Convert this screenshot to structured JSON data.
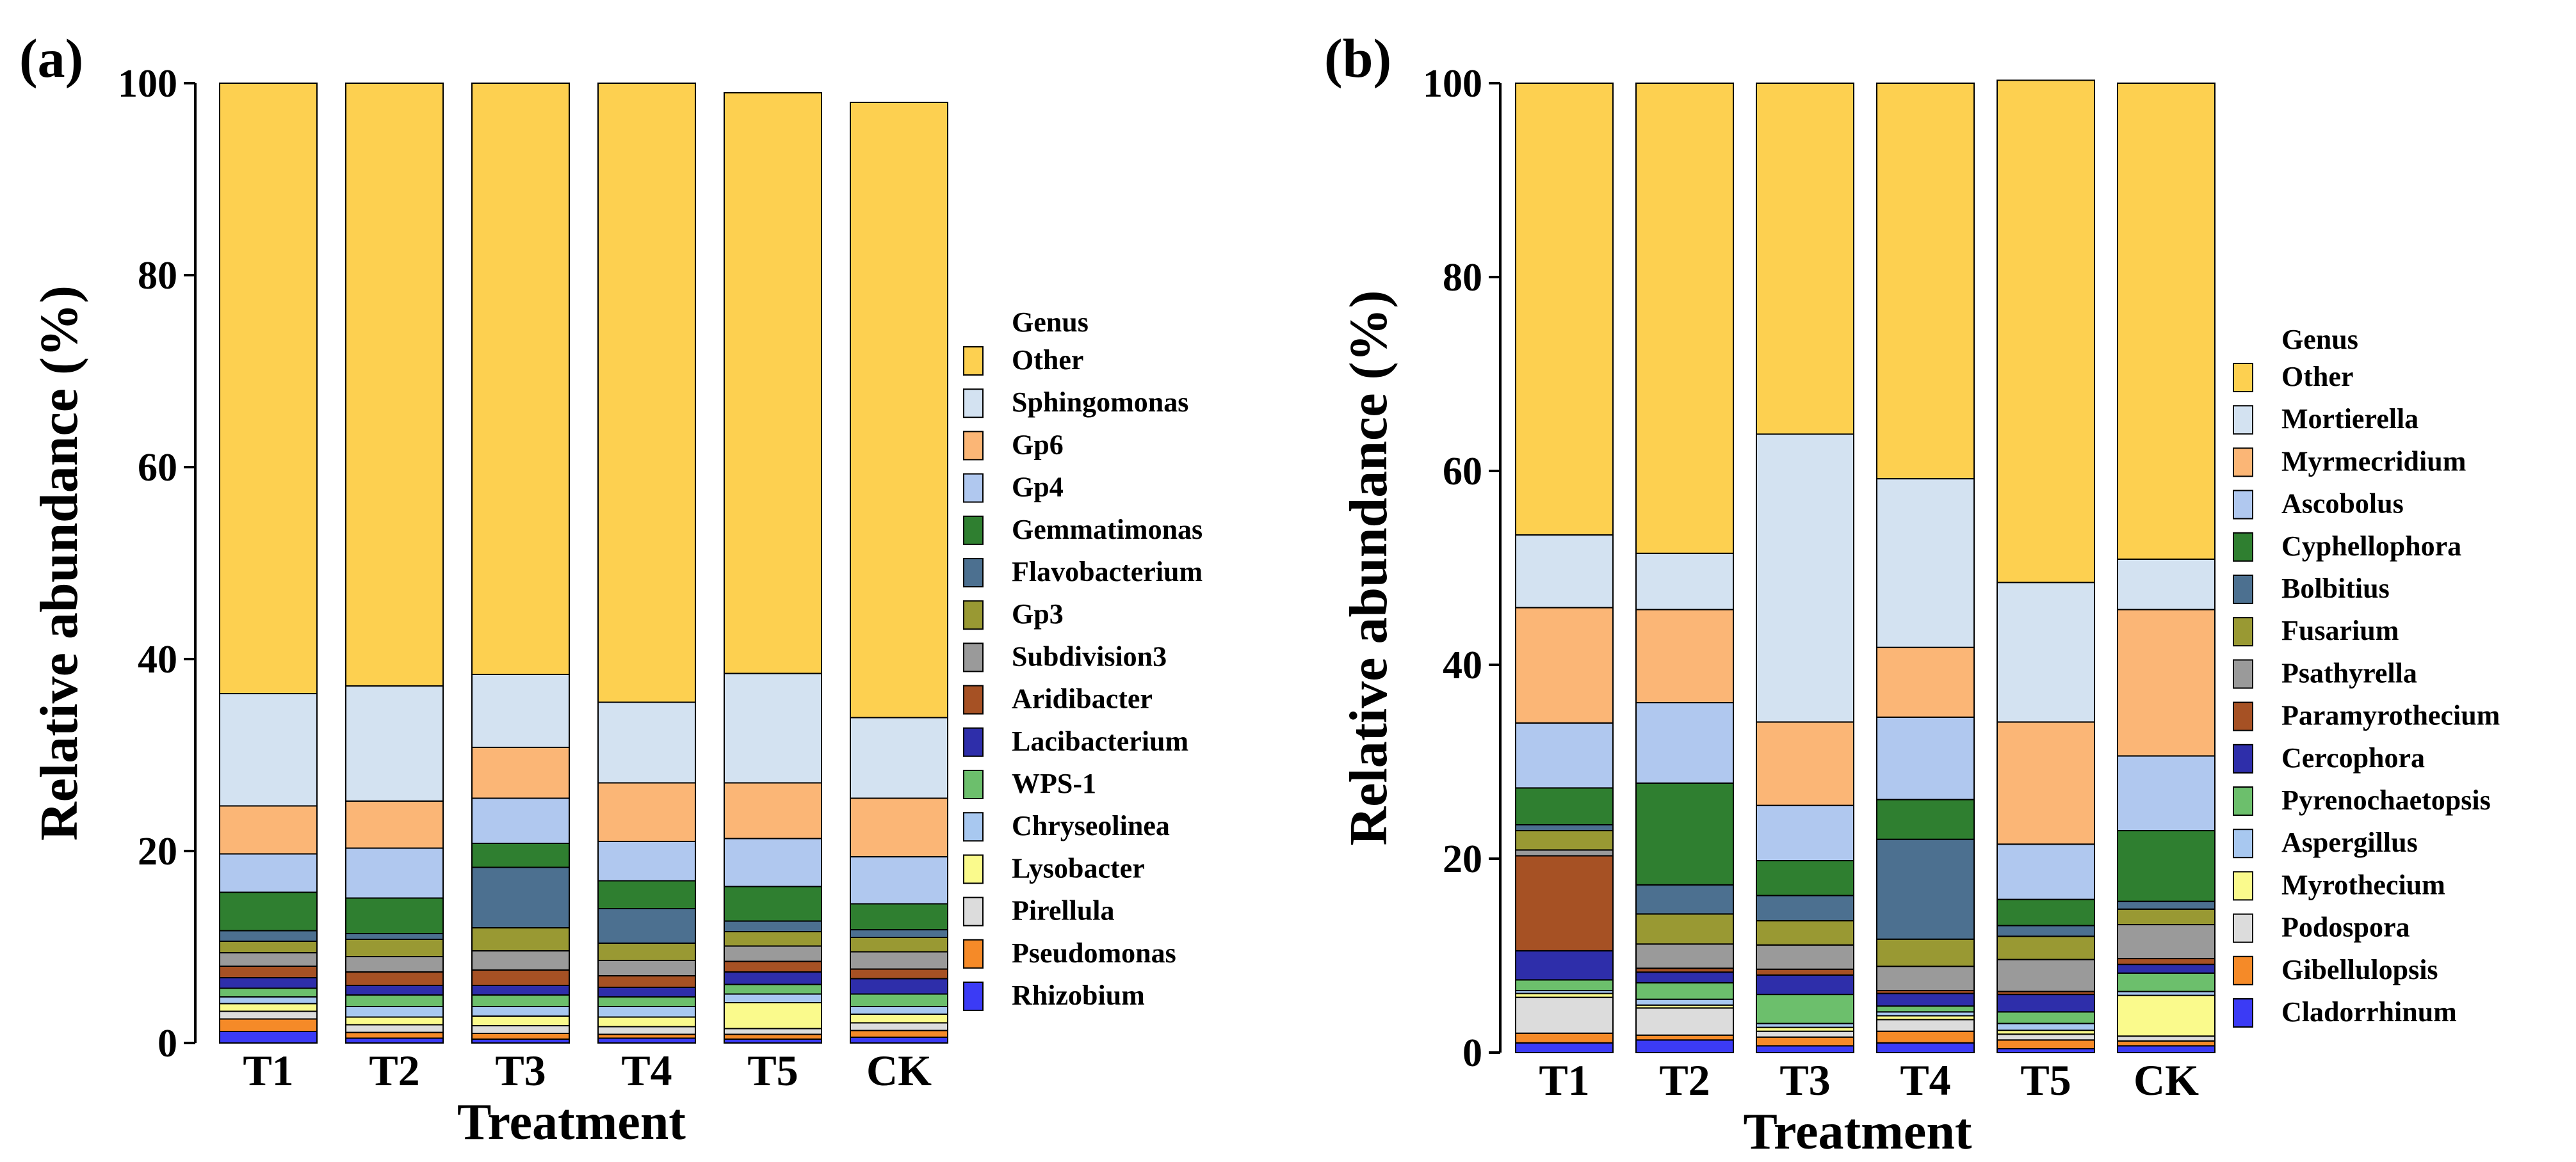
{
  "chart_data": [
    {
      "panel_label": "(a)",
      "type": "bar",
      "stacked": true,
      "xlabel": "Treatment",
      "ylabel": "Relative abundance (%)",
      "ylim": [
        0,
        100
      ],
      "yticks": [
        0,
        20,
        40,
        60,
        80,
        100
      ],
      "categories": [
        "T1",
        "T2",
        "T3",
        "T4",
        "T5",
        "CK"
      ],
      "legend": {
        "title": "Genus",
        "placement": "right"
      },
      "series": [
        {
          "name": "Rhizobium",
          "color": "#3b3bf5",
          "values": [
            1.2,
            0.5,
            0.4,
            0.5,
            0.4,
            0.6
          ]
        },
        {
          "name": "Pseudomonas",
          "color": "#f58a28",
          "values": [
            1.3,
            0.6,
            0.6,
            0.4,
            0.5,
            0.7
          ]
        },
        {
          "name": "Pirellula",
          "color": "#dcdcdc",
          "values": [
            0.8,
            0.8,
            0.8,
            0.8,
            0.6,
            0.8
          ]
        },
        {
          "name": "Lysobacter",
          "color": "#fafa8c",
          "values": [
            0.8,
            0.8,
            1.0,
            1.0,
            2.7,
            0.9
          ]
        },
        {
          "name": "Chryseolinea",
          "color": "#a8c8f0",
          "values": [
            0.7,
            1.1,
            1.0,
            1.1,
            0.9,
            0.8
          ]
        },
        {
          "name": "WPS-1",
          "color": "#6cbf6c",
          "values": [
            0.9,
            1.2,
            1.2,
            1.0,
            1.0,
            1.3
          ]
        },
        {
          "name": "Lacibacterium",
          "color": "#2e2eaa",
          "values": [
            1.1,
            1.0,
            1.0,
            1.0,
            1.3,
            1.6
          ]
        },
        {
          "name": "Aridibacter",
          "color": "#a65124",
          "values": [
            1.2,
            1.4,
            1.6,
            1.2,
            1.1,
            1.0
          ]
        },
        {
          "name": "Subdivision3",
          "color": "#9a9a9a",
          "values": [
            1.4,
            1.6,
            2.0,
            1.6,
            1.6,
            1.8
          ]
        },
        {
          "name": "Gp3",
          "color": "#999933",
          "values": [
            1.2,
            1.8,
            2.4,
            1.8,
            1.5,
            1.5
          ]
        },
        {
          "name": "Flavobacterium",
          "color": "#4c7090",
          "values": [
            1.1,
            0.6,
            6.3,
            3.6,
            1.1,
            0.8
          ]
        },
        {
          "name": "Gemmatimonas",
          "color": "#2f7f30",
          "values": [
            4.0,
            3.7,
            2.5,
            2.9,
            3.6,
            2.7
          ]
        },
        {
          "name": "Gp4",
          "color": "#b0c8ef",
          "values": [
            4.0,
            5.2,
            4.7,
            4.1,
            5.0,
            4.9
          ]
        },
        {
          "name": "Gp6",
          "color": "#fbb676",
          "values": [
            5.0,
            4.9,
            5.3,
            6.1,
            5.8,
            6.1
          ]
        },
        {
          "name": "Sphingomonas",
          "color": "#d3e2f1",
          "values": [
            11.7,
            12.0,
            7.6,
            8.4,
            11.4,
            8.4
          ]
        },
        {
          "name": "Other",
          "color": "#fdd050",
          "values": [
            63.6,
            62.8,
            61.6,
            64.5,
            60.5,
            64.1
          ]
        }
      ]
    },
    {
      "panel_label": "(b)",
      "type": "bar",
      "stacked": true,
      "xlabel": "Treatment",
      "ylabel": "Relative abundance (%)",
      "ylim": [
        0,
        100
      ],
      "yticks": [
        0,
        20,
        40,
        60,
        80,
        100
      ],
      "categories": [
        "T1",
        "T2",
        "T3",
        "T4",
        "T5",
        "CK"
      ],
      "legend": {
        "title": "Genus",
        "placement": "right"
      },
      "series": [
        {
          "name": "Cladorrhinum",
          "color": "#3b3bf5",
          "values": [
            1.0,
            1.3,
            0.7,
            1.0,
            0.4,
            0.7
          ]
        },
        {
          "name": "Gibellulopsis",
          "color": "#f58a28",
          "values": [
            1.0,
            0.5,
            0.9,
            1.2,
            0.9,
            0.5
          ]
        },
        {
          "name": "Podospora",
          "color": "#dcdcdc",
          "values": [
            3.7,
            2.8,
            0.6,
            1.2,
            0.6,
            0.5
          ]
        },
        {
          "name": "Myrothecium",
          "color": "#fafa8c",
          "values": [
            0.4,
            0.3,
            0.4,
            0.4,
            0.4,
            4.2
          ]
        },
        {
          "name": "Aspergillus",
          "color": "#a8c8f0",
          "values": [
            0.3,
            0.6,
            0.4,
            0.4,
            0.7,
            0.4
          ]
        },
        {
          "name": "Pyrenochaetopsis",
          "color": "#6cbf6c",
          "values": [
            1.1,
            1.7,
            3.0,
            0.6,
            1.2,
            1.9
          ]
        },
        {
          "name": "Cercophora",
          "color": "#2e2eaa",
          "values": [
            3.0,
            1.1,
            2.0,
            1.3,
            1.8,
            0.9
          ]
        },
        {
          "name": "Paramyrothecium",
          "color": "#a65124",
          "values": [
            9.8,
            0.4,
            0.6,
            0.3,
            0.3,
            0.6
          ]
        },
        {
          "name": "Psathyrella",
          "color": "#9a9a9a",
          "values": [
            0.6,
            2.5,
            2.5,
            2.5,
            3.3,
            3.5
          ]
        },
        {
          "name": "Fusarium",
          "color": "#999933",
          "values": [
            2.0,
            3.1,
            2.5,
            2.8,
            2.4,
            1.6
          ]
        },
        {
          "name": "Bolbitius",
          "color": "#4c7090",
          "values": [
            0.6,
            3.0,
            2.6,
            10.3,
            1.1,
            0.8
          ]
        },
        {
          "name": "Cyphellophora",
          "color": "#2f7f30",
          "values": [
            3.8,
            10.5,
            3.6,
            4.1,
            2.7,
            7.3
          ]
        },
        {
          "name": "Ascobolus",
          "color": "#b0c8ef",
          "values": [
            6.7,
            8.3,
            5.7,
            8.5,
            5.7,
            7.7
          ]
        },
        {
          "name": "Myrmecridium",
          "color": "#fbb676",
          "values": [
            11.9,
            9.6,
            8.6,
            7.2,
            12.6,
            15.1
          ]
        },
        {
          "name": "Mortierella",
          "color": "#d3e2f1",
          "values": [
            7.5,
            5.8,
            29.7,
            17.4,
            14.4,
            5.2
          ]
        },
        {
          "name": "Other",
          "color": "#fdd050",
          "values": [
            46.6,
            48.5,
            36.2,
            40.8,
            51.8,
            49.1
          ]
        }
      ]
    }
  ]
}
